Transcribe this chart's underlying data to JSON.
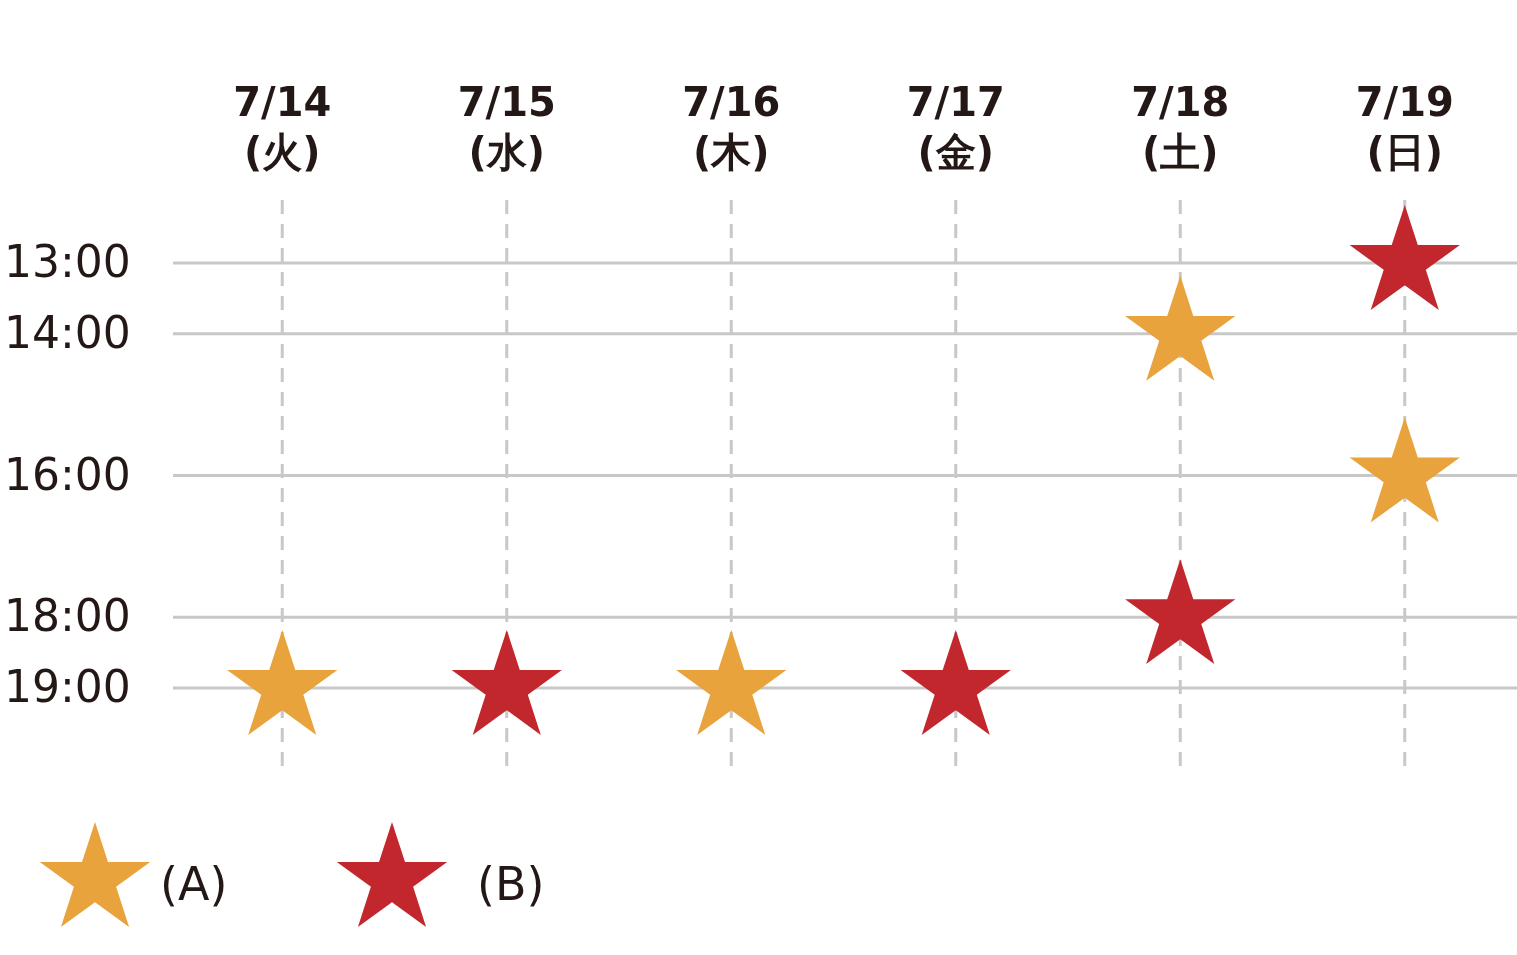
{
  "chart_data": {
    "type": "scatter",
    "categories": [
      "7/14\n(火)",
      "7/15\n(水)",
      "7/16\n(木)",
      "7/17\n(金)",
      "7/18\n(土)",
      "7/19\n(日)"
    ],
    "series": [
      {
        "name": "(A)",
        "color": "#e8a33d",
        "values": [
          19,
          null,
          19,
          null,
          14,
          16
        ]
      },
      {
        "name": "(B)",
        "color": "#c1272d",
        "values": [
          null,
          19,
          null,
          19,
          18,
          13
        ]
      }
    ],
    "ylim": [
      19,
      13
    ],
    "yticks": [
      {
        "value": 13,
        "label": "13:00"
      },
      {
        "value": 14,
        "label": "14:00"
      },
      {
        "value": 16,
        "label": "16:00"
      },
      {
        "value": 18,
        "label": "18:00"
      },
      {
        "value": 19,
        "label": "19:00"
      }
    ],
    "grid": true,
    "marker": "star",
    "legend": "bottom left"
  }
}
